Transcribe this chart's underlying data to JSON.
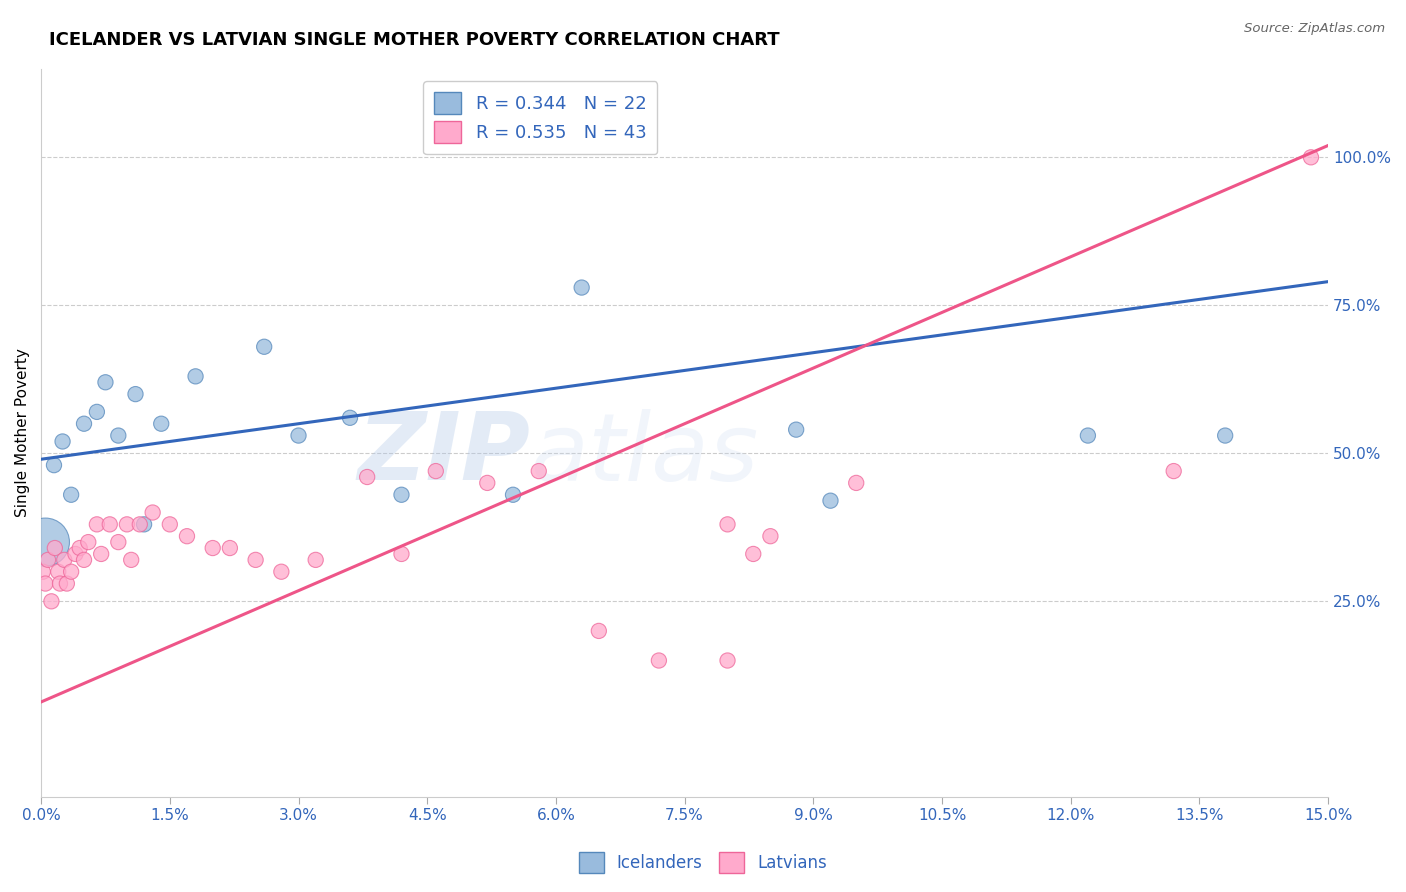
{
  "title": "ICELANDER VS LATVIAN SINGLE MOTHER POVERTY CORRELATION CHART",
  "source": "Source: ZipAtlas.com",
  "ylabel": "Single Mother Poverty",
  "xlim": [
    0.0,
    15.0
  ],
  "ylim": [
    -8.0,
    115.0
  ],
  "xticks": [
    0.0,
    1.5,
    3.0,
    4.5,
    6.0,
    7.5,
    9.0,
    10.5,
    12.0,
    13.5,
    15.0
  ],
  "ytick_positions": [
    0,
    25,
    50,
    75,
    100
  ],
  "ytick_labels": [
    "",
    "25.0%",
    "50.0%",
    "75.0%",
    "100.0%"
  ],
  "watermark_zip": "ZIP",
  "watermark_atlas": "atlas",
  "legend_blue_label": "R = 0.344   N = 22",
  "legend_pink_label": "R = 0.535   N = 43",
  "icelanders_x": [
    0.05,
    0.15,
    0.25,
    0.35,
    0.5,
    0.65,
    0.75,
    0.9,
    1.1,
    1.4,
    1.8,
    2.6,
    3.6,
    5.5,
    6.3,
    8.8,
    12.2,
    13.8,
    9.2,
    4.2,
    3.0,
    1.2
  ],
  "icelanders_y": [
    35,
    48,
    52,
    43,
    55,
    57,
    62,
    53,
    60,
    55,
    63,
    68,
    56,
    43,
    78,
    54,
    53,
    53,
    42,
    43,
    53,
    38
  ],
  "icelanders_size": [
    1200,
    120,
    120,
    120,
    120,
    120,
    120,
    120,
    120,
    120,
    120,
    120,
    120,
    120,
    120,
    120,
    120,
    120,
    120,
    120,
    120,
    120
  ],
  "latvians_x": [
    0.02,
    0.05,
    0.08,
    0.12,
    0.16,
    0.2,
    0.22,
    0.27,
    0.3,
    0.35,
    0.4,
    0.45,
    0.5,
    0.55,
    0.65,
    0.7,
    0.8,
    0.9,
    1.0,
    1.05,
    1.15,
    1.3,
    1.5,
    1.7,
    2.0,
    2.2,
    2.5,
    2.8,
    3.2,
    3.8,
    4.2,
    4.6,
    5.2,
    5.8,
    6.5,
    7.2,
    8.0,
    8.0,
    8.3,
    8.5,
    9.5,
    13.2,
    14.8
  ],
  "latvians_y": [
    30,
    28,
    32,
    25,
    34,
    30,
    28,
    32,
    28,
    30,
    33,
    34,
    32,
    35,
    38,
    33,
    38,
    35,
    38,
    32,
    38,
    40,
    38,
    36,
    34,
    34,
    32,
    30,
    32,
    46,
    33,
    47,
    45,
    47,
    20,
    15,
    15,
    38,
    33,
    36,
    45,
    47,
    100
  ],
  "latvians_size": [
    120,
    120,
    120,
    120,
    120,
    120,
    120,
    120,
    120,
    120,
    120,
    120,
    120,
    120,
    120,
    120,
    120,
    120,
    120,
    120,
    120,
    120,
    120,
    120,
    120,
    120,
    120,
    120,
    120,
    120,
    120,
    120,
    120,
    120,
    120,
    120,
    120,
    120,
    120,
    120,
    120,
    120,
    120
  ],
  "blue_color": "#99BBDD",
  "pink_color": "#FFAACC",
  "blue_edge_color": "#5588BB",
  "pink_edge_color": "#EE6699",
  "blue_line_color": "#3366BB",
  "pink_line_color": "#EE5588",
  "grid_color": "#CCCCCC",
  "background_color": "#FFFFFF",
  "blue_trend_x": [
    0.0,
    15.0
  ],
  "blue_trend_y": [
    49.0,
    79.0
  ],
  "pink_trend_x": [
    0.0,
    15.0
  ],
  "pink_trend_y": [
    8.0,
    102.0
  ]
}
